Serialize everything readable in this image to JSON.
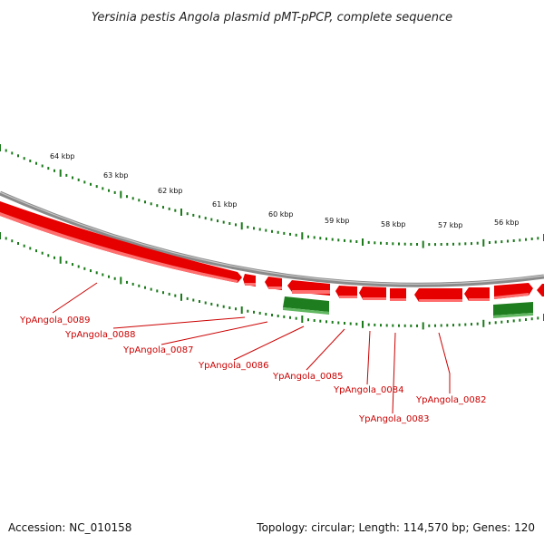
{
  "title": "Yersinia pestis Angola plasmid pMT-pPCP, complete sequence",
  "footer": {
    "accession": "Accession: NC_010158",
    "summary": "Topology: circular; Length: 114,570 bp; Genes: 120"
  },
  "colors": {
    "forward_gene": "#e60000",
    "forward_gene_light": "#ff6f6f",
    "reverse_gene": "#1e7d1e",
    "reverse_gene_light": "#62b862",
    "backbone": "#8a8a8a",
    "ticks": "#1a7a1a",
    "gene_label": "#cc0000"
  },
  "scale_labels": [
    {
      "text": "64 kbp",
      "kbp": 64
    },
    {
      "text": "63 kbp",
      "kbp": 63
    },
    {
      "text": "62 kbp",
      "kbp": 62
    },
    {
      "text": "61 kbp",
      "kbp": 61
    },
    {
      "text": "60 kbp",
      "kbp": 60
    },
    {
      "text": "59 kbp",
      "kbp": 59
    },
    {
      "text": "58 kbp",
      "kbp": 58
    },
    {
      "text": "57 kbp",
      "kbp": 57
    },
    {
      "text": "56 kbp",
      "kbp": 56
    }
  ],
  "gene_labels": [
    {
      "text": "YpAngola_0089"
    },
    {
      "text": "YpAngola_0088"
    },
    {
      "text": "YpAngola_0087"
    },
    {
      "text": "YpAngola_0086"
    },
    {
      "text": "YpAngola_0085"
    },
    {
      "text": "YpAngola_0084"
    },
    {
      "text": "YpAngola_0083"
    },
    {
      "text": "YpAngola_0082"
    }
  ]
}
